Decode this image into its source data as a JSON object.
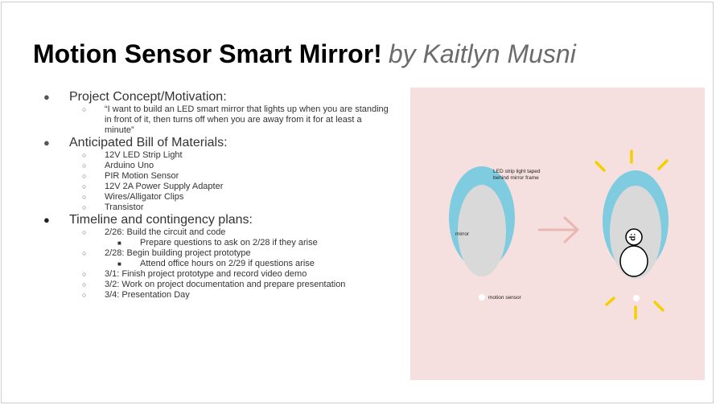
{
  "title": {
    "main": "Motion Sensor Smart Mirror!",
    "by": "by Kaitlyn Musni"
  },
  "content": {
    "concept": {
      "heading": "Project Concept/Motivation:",
      "quote": "“I want to build an LED smart mirror that lights up when you are standing in front of it, then turns off when you are away from it for at least a minute”"
    },
    "materials": {
      "heading": "Anticipated Bill of Materials:",
      "items": [
        "12V LED Strip Light",
        "Arduino Uno",
        "PIR Motion Sensor",
        "12V 2A Power Supply Adapter",
        "Wires/Alligator Clips",
        "Transistor"
      ]
    },
    "timeline": {
      "heading": "Timeline and contingency plans:",
      "items": [
        {
          "text": "2/26: Build the circuit and code",
          "sub": "Prepare questions to ask on 2/28 if they arise"
        },
        {
          "text": "2/28: Begin building project prototype",
          "sub": "Attend office hours on 2/29 if questions arise"
        },
        {
          "text": "3/1: Finish project prototype and record video demo"
        },
        {
          "text": "3/2: Work on project documentation and prepare presentation"
        },
        {
          "text": "3/4: Presentation Day"
        }
      ]
    }
  },
  "figure": {
    "label_strip_line1": "LED strip light taped",
    "label_strip_line2": "behind mirror frame",
    "label_mirror": "mirror",
    "label_sensor": "motion sensor",
    "face_glyph": ":p",
    "colors": {
      "background": "#f6e0df",
      "frame": "#7fcbdf",
      "glass": "#d9d9d9",
      "arrow": "#e9b7b4",
      "glow": "#f5d000"
    }
  }
}
